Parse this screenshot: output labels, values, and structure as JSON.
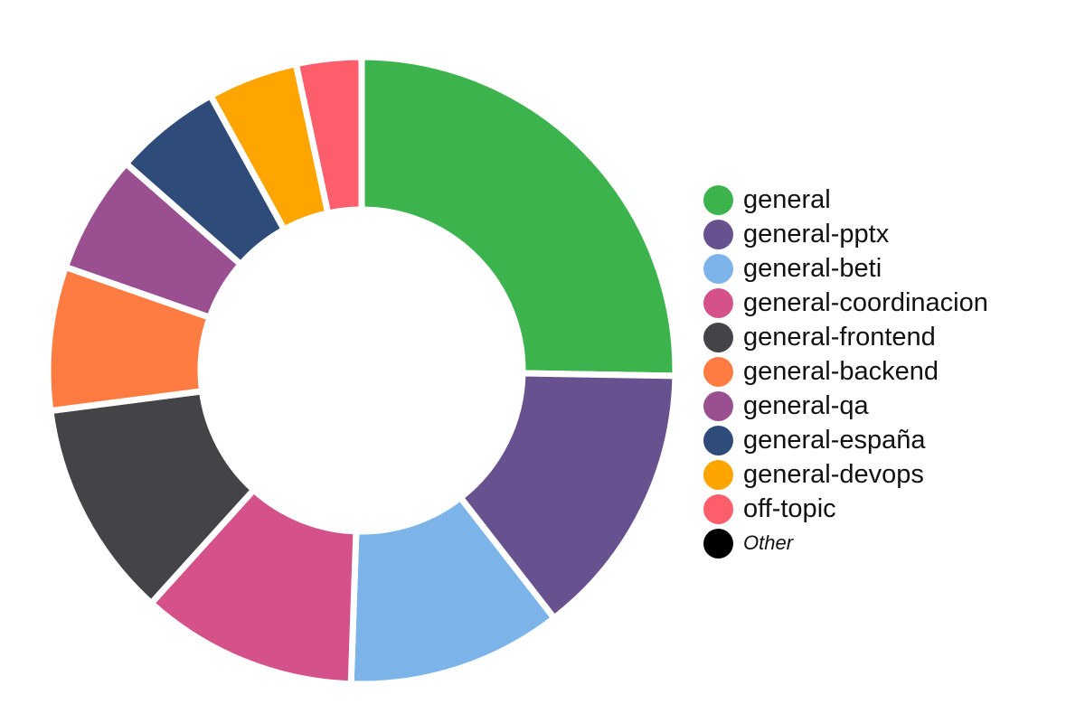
{
  "chart_data": {
    "type": "pie",
    "style": "donut",
    "title": "",
    "legend_position": "right",
    "slices": [
      {
        "label": "general",
        "value": 25.6,
        "color": "#3db34d"
      },
      {
        "label": "general-pptx",
        "value": 14.4,
        "color": "#67528f"
      },
      {
        "label": "general-beti",
        "value": 11.2,
        "color": "#7cb4ea"
      },
      {
        "label": "general-coordinacion",
        "value": 11.3,
        "color": "#d45289"
      },
      {
        "label": "general-frontend",
        "value": 11.4,
        "color": "#444347"
      },
      {
        "label": "general-backend",
        "value": 7.5,
        "color": "#fe7c42"
      },
      {
        "label": "general-qa",
        "value": 6.2,
        "color": "#9a4f91"
      },
      {
        "label": "general-españa",
        "value": 5.6,
        "color": "#2f4b7a"
      },
      {
        "label": "general-devops",
        "value": 4.7,
        "color": "#fea501"
      },
      {
        "label": "off-topic",
        "value": 3.4,
        "color": "#fd5e6c"
      }
    ],
    "other": {
      "label": "Other",
      "value": 0,
      "color": "#000000"
    }
  }
}
